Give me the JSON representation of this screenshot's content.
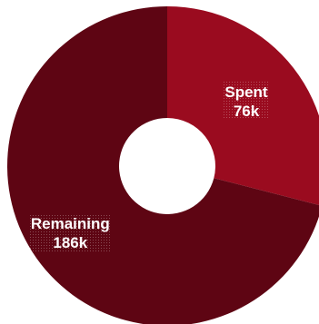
{
  "chart_data": {
    "type": "pie",
    "donut": true,
    "legend": false,
    "categories": [
      "Spent",
      "Remaining"
    ],
    "values": [
      76,
      186
    ],
    "value_labels": [
      "76k",
      "186k"
    ],
    "colors": [
      "#9a0b1f",
      "#5e0513"
    ],
    "background": "#ffffff"
  }
}
